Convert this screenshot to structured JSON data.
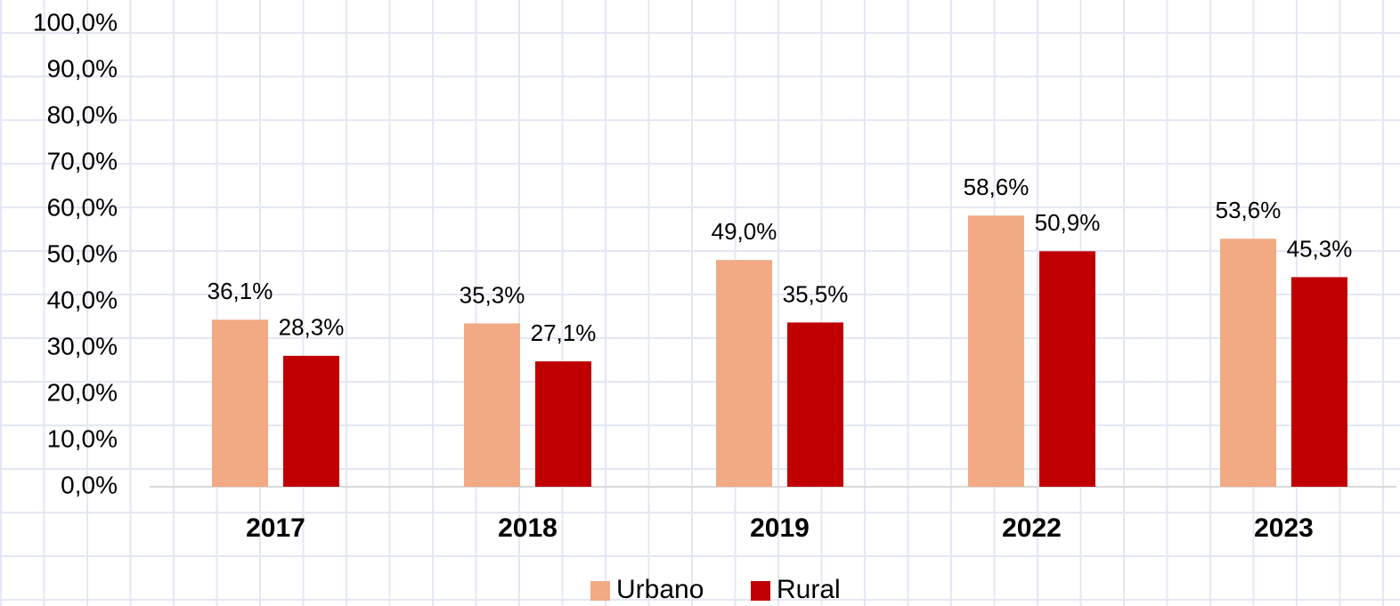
{
  "chart_data": {
    "type": "bar",
    "categories": [
      "2017",
      "2018",
      "2019",
      "2022",
      "2023"
    ],
    "series": [
      {
        "name": "Urbano",
        "color": "#f2aa84",
        "values": [
          36.1,
          35.3,
          49.0,
          58.6,
          53.6
        ],
        "value_labels": [
          "36,1%",
          "35,3%",
          "49,0%",
          "58,6%",
          "53,6%"
        ]
      },
      {
        "name": "Rural",
        "color": "#c00000",
        "values": [
          28.3,
          27.1,
          35.5,
          50.9,
          45.3
        ],
        "value_labels": [
          "28,3%",
          "27,1%",
          "35,5%",
          "50,9%",
          "45,3%"
        ]
      }
    ],
    "ylim": [
      0,
      100
    ],
    "yticks": [
      {
        "value": 0,
        "label": "0,0%"
      },
      {
        "value": 10,
        "label": "10,0%"
      },
      {
        "value": 20,
        "label": "20,0%"
      },
      {
        "value": 30,
        "label": "30,0%"
      },
      {
        "value": 40,
        "label": "40,0%"
      },
      {
        "value": 50,
        "label": "50,0%"
      },
      {
        "value": 60,
        "label": "60,0%"
      },
      {
        "value": 70,
        "label": "70,0%"
      },
      {
        "value": 80,
        "label": "80,0%"
      },
      {
        "value": 90,
        "label": "90,0%"
      },
      {
        "value": 100,
        "label": "100,0%"
      }
    ],
    "grid": false,
    "legend": "bottom"
  }
}
